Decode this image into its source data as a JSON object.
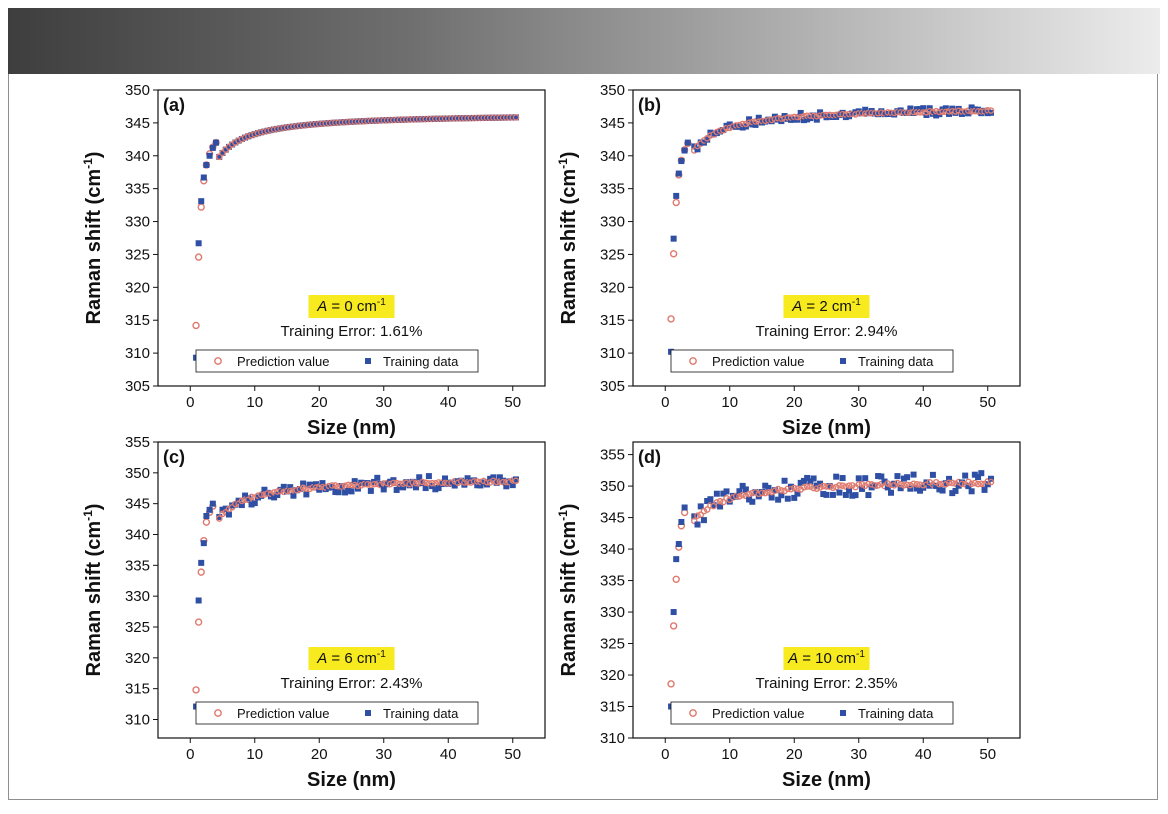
{
  "chart_data": [
    {
      "type": "scatter",
      "panel_label": "(a)",
      "xlabel": "Size (nm)",
      "ylabel": "Raman shift (cm",
      "ylabel_sup": "-1",
      "ylabel_end": ")",
      "xlim": [
        -5,
        55
      ],
      "ylim": [
        305,
        350
      ],
      "xticks": [
        0,
        10,
        20,
        30,
        40,
        50
      ],
      "yticks": [
        305,
        310,
        315,
        320,
        325,
        330,
        335,
        340,
        345,
        350
      ],
      "annotation_italic": "A",
      "annotation_value": " = 0 cm",
      "annotation_sup": "-1",
      "error_text": "Training Error: 1.61%",
      "noise": 0,
      "legend_placement": "bottom-center",
      "series": [
        {
          "name": "Prediction value",
          "marker": "open-circle",
          "color": "#e0786c",
          "x": [
            0.9,
            1.3,
            1.7,
            2.1,
            2.5,
            3.0,
            3.5,
            4.0
          ],
          "y": [
            314.2,
            324.6,
            332.2,
            336.2,
            338.6,
            340.3,
            341.3,
            342.0
          ]
        },
        {
          "name": "Training data",
          "marker": "filled-square",
          "color": "#2e4fa3",
          "x": [
            0.9,
            1.3,
            1.7,
            2.1,
            2.5,
            3.0,
            3.5,
            4.0
          ],
          "y": [
            309.3,
            326.7,
            333.1,
            336.7,
            338.6,
            340.0,
            341.2,
            342.0
          ]
        }
      ],
      "dense_fit": {
        "start_x": 1,
        "end_x": 50.5,
        "step": 0.5,
        "plateau": 346.5,
        "coef": 34,
        "pred_color": "#e07b6f",
        "train_color": "#2e4fa3"
      }
    },
    {
      "type": "scatter",
      "panel_label": "(b)",
      "xlabel": "Size (nm)",
      "ylabel": "Raman shift (cm",
      "ylabel_sup": "-1",
      "ylabel_end": ")",
      "xlim": [
        -5,
        55
      ],
      "ylim": [
        305,
        350
      ],
      "xticks": [
        0,
        10,
        20,
        30,
        40,
        50
      ],
      "yticks": [
        305,
        310,
        315,
        320,
        325,
        330,
        335,
        340,
        345,
        350
      ],
      "annotation_italic": "A",
      "annotation_value": " = 2 cm",
      "annotation_sup": "-1",
      "error_text": "Training Error: 2.94%",
      "noise": 0.6,
      "legend_placement": "bottom-center",
      "series": [
        {
          "name": "Prediction value",
          "marker": "open-circle",
          "color": "#e0786c",
          "x": [
            0.9,
            1.3,
            1.7,
            2.1,
            2.5,
            3.0,
            3.5
          ],
          "y": [
            315.2,
            325.1,
            332.9,
            337.1,
            339.3,
            340.9,
            341.9
          ]
        },
        {
          "name": "Training data",
          "marker": "filled-square",
          "color": "#2e4fa3",
          "x": [
            0.9,
            1.3,
            1.7,
            2.1,
            2.5,
            3.0,
            3.5
          ],
          "y": [
            310.2,
            327.4,
            333.9,
            337.3,
            339.2,
            340.8,
            342.0
          ]
        }
      ],
      "dense_fit": {
        "start_x": 1,
        "end_x": 50.5,
        "step": 0.5,
        "plateau": 347.5,
        "coef": 34,
        "pred_color": "#e07b6f",
        "train_color": "#2e4fa3"
      }
    },
    {
      "type": "scatter",
      "panel_label": "(c)",
      "xlabel": "Size (nm)",
      "ylabel": "Raman shift (cm",
      "ylabel_sup": "-1",
      "ylabel_end": ")",
      "xlim": [
        -5,
        55
      ],
      "ylim": [
        307,
        355
      ],
      "xticks": [
        0,
        10,
        20,
        30,
        40,
        50
      ],
      "yticks": [
        310,
        315,
        320,
        325,
        330,
        335,
        340,
        345,
        350,
        355
      ],
      "annotation_italic": "A",
      "annotation_value": " = 6 cm",
      "annotation_sup": "-1",
      "error_text": "Training Error: 2.43%",
      "noise": 1.1,
      "legend_placement": "bottom-center",
      "series": [
        {
          "name": "Prediction value",
          "marker": "open-circle",
          "color": "#e0786c",
          "x": [
            0.9,
            1.3,
            1.7,
            2.1,
            2.5,
            3.0,
            3.5
          ],
          "y": [
            314.8,
            325.8,
            333.9,
            339.0,
            342.0,
            343.6,
            344.6
          ]
        },
        {
          "name": "Training data",
          "marker": "filled-square",
          "color": "#2e4fa3",
          "x": [
            0.9,
            1.3,
            1.7,
            2.1,
            2.5,
            3.0,
            3.5
          ],
          "y": [
            312.1,
            329.3,
            335.4,
            338.6,
            343.0,
            344.0,
            345.0
          ]
        }
      ],
      "dense_fit": {
        "start_x": 1,
        "end_x": 50.5,
        "step": 0.5,
        "plateau": 349.3,
        "coef": 34,
        "pred_color": "#e07b6f",
        "train_color": "#2e4fa3"
      }
    },
    {
      "type": "scatter",
      "panel_label": "(d)",
      "xlabel": "Size (nm)",
      "ylabel": "Raman shift (cm",
      "ylabel_sup": "-1",
      "ylabel_end": ")",
      "xlim": [
        -5,
        55
      ],
      "ylim": [
        310,
        357
      ],
      "xticks": [
        0,
        10,
        20,
        30,
        40,
        50
      ],
      "yticks": [
        310,
        315,
        320,
        325,
        330,
        335,
        340,
        345,
        350,
        355
      ],
      "annotation_italic": "A",
      "annotation_value": " = 10 cm",
      "annotation_sup": "-1",
      "error_text": "Training Error: 2.35%",
      "noise": 1.6,
      "legend_placement": "bottom-center",
      "series": [
        {
          "name": "Prediction value",
          "marker": "open-circle",
          "color": "#e0786c",
          "x": [
            0.9,
            1.3,
            1.7,
            2.1,
            2.5,
            3.0
          ],
          "y": [
            318.6,
            327.8,
            335.2,
            340.3,
            343.7,
            345.8
          ]
        },
        {
          "name": "Training data",
          "marker": "filled-square",
          "color": "#2e4fa3",
          "x": [
            0.9,
            1.3,
            1.7,
            2.1,
            2.5,
            3.0
          ],
          "y": [
            315.0,
            330.0,
            338.4,
            340.8,
            344.3,
            346.6
          ]
        }
      ],
      "dense_fit": {
        "start_x": 1,
        "end_x": 50.5,
        "step": 0.5,
        "plateau": 351.2,
        "coef": 34,
        "pred_color": "#e07b6f",
        "train_color": "#2e4fa3"
      }
    }
  ]
}
